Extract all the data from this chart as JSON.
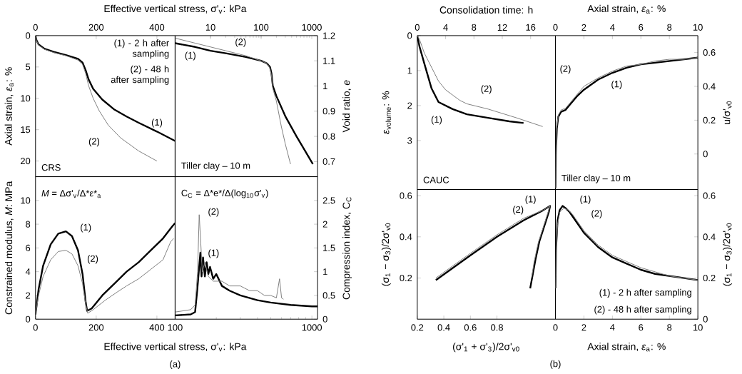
{
  "chart_data": [
    {
      "type": "line",
      "xlabel": "Effective vertical stress, σ'$_{v}$: kPa",
      "ylabel": "Axial strain, *ε*$_{a}$: %",
      "xlim": [
        0,
        460
      ],
      "ylim": [
        22.5,
        0
      ],
      "xticks": [
        0,
        200,
        400
      ],
      "yticks": [
        0,
        5,
        10,
        15,
        20
      ],
      "series": [
        {
          "color": "#000000",
          "x": [
            0,
            3,
            10,
            30,
            60,
            100,
            140,
            155,
            165,
            175,
            190,
            220,
            260,
            300,
            340,
            400,
            460
          ],
          "values": [
            0,
            0.7,
            1.4,
            2.1,
            2.6,
            3.1,
            3.7,
            4.3,
            5.5,
            7.0,
            8.5,
            10.2,
            11.8,
            12.9,
            13.9,
            15.3,
            16.8
          ]
        },
        {
          "color": "#808080",
          "x": [
            0,
            3,
            10,
            30,
            60,
            100,
            140,
            155,
            165,
            175,
            190,
            210,
            240,
            280,
            340,
            400
          ],
          "values": [
            0,
            0.8,
            1.5,
            2.2,
            2.7,
            3.2,
            3.9,
            4.6,
            6.0,
            8.0,
            10.0,
            12.0,
            14.3,
            16.3,
            18.4,
            20.0
          ]
        }
      ],
      "annotations": [
        "(1) - 2 h after sampling",
        "(2) - 48 h after sampling",
        "CRS",
        "(1)",
        "(2)"
      ]
    },
    {
      "type": "line",
      "log": "x",
      "ylabel": "Void ratio, *e*",
      "xlim": [
        2,
        1300
      ],
      "ylim": [
        0.64,
        1.2
      ],
      "xticks": [
        10,
        100,
        1000
      ],
      "yticks": [
        0.7,
        0.8,
        0.9,
        1,
        1.1,
        1.2
      ],
      "series": [
        {
          "color": "#000000",
          "x": [
            2,
            5,
            10,
            20,
            50,
            100,
            130,
            150,
            160,
            170,
            200,
            300,
            500,
            700,
            1050
          ],
          "values": [
            1.17,
            1.155,
            1.14,
            1.13,
            1.115,
            1.1,
            1.09,
            1.075,
            1.05,
            1.0,
            0.96,
            0.88,
            0.8,
            0.75,
            0.69
          ]
        },
        {
          "color": "#808080",
          "x": [
            2,
            5,
            10,
            20,
            50,
            100,
            130,
            150,
            160,
            170,
            200,
            250,
            300,
            380
          ],
          "values": [
            1.19,
            1.17,
            1.155,
            1.14,
            1.12,
            1.1,
            1.09,
            1.07,
            1.04,
            0.99,
            0.94,
            0.84,
            0.77,
            0.69
          ]
        }
      ],
      "annotations": [
        "Tiller clay – 10 m",
        "(1)",
        "(2)"
      ]
    },
    {
      "type": "line",
      "xlabel": "Consolidation time: h",
      "ylabel": "*ε*$_{volume}$: %",
      "xlim": [
        0,
        19.5
      ],
      "ylim": [
        4.4,
        0
      ],
      "xticks": [
        0,
        4,
        8,
        12,
        16
      ],
      "yticks": [
        0,
        1,
        2,
        3
      ],
      "series": [
        {
          "color": "#000000",
          "x": [
            0,
            0.3,
            1,
            2,
            3,
            5,
            7,
            10,
            13,
            15
          ],
          "values": [
            0,
            0.3,
            0.8,
            1.5,
            1.9,
            2.1,
            2.25,
            2.35,
            2.45,
            2.5
          ]
        },
        {
          "color": "#808080",
          "x": [
            0,
            0.3,
            1,
            2,
            3,
            4,
            5,
            6,
            7,
            10,
            14,
            17.7
          ],
          "values": [
            0,
            0.1,
            0.5,
            0.9,
            1.3,
            1.55,
            1.7,
            1.85,
            1.95,
            2.1,
            2.35,
            2.6
          ]
        }
      ],
      "annotations": [
        "CAUC",
        "(1)",
        "(2)"
      ]
    },
    {
      "type": "line",
      "xlabel": "Axial strain, *ε*$_{a}$: %",
      "ylabel": "u/σ'$_{v0}$",
      "xlim": [
        0,
        10
      ],
      "ylim": [
        -0.21,
        0.7
      ],
      "xticks": [
        0,
        2,
        4,
        6,
        8,
        10
      ],
      "yticks": [
        0,
        0.2,
        0.4,
        0.6
      ],
      "series": [
        {
          "color": "#000000",
          "x": [
            0,
            0.03,
            0.1,
            0.2,
            0.4,
            0.7,
            1.0,
            1.5,
            2,
            3,
            4,
            5,
            6,
            7,
            8,
            9,
            10
          ],
          "values": [
            -0.2,
            0.0,
            0.15,
            0.22,
            0.25,
            0.26,
            0.29,
            0.34,
            0.38,
            0.44,
            0.48,
            0.51,
            0.53,
            0.54,
            0.55,
            0.56,
            0.57
          ]
        },
        {
          "color": "#808080",
          "x": [
            0,
            0.03,
            0.1,
            0.2,
            0.4,
            0.7,
            1.0,
            1.5,
            2,
            3,
            4,
            5,
            6,
            7,
            8,
            9,
            10
          ],
          "values": [
            -0.2,
            0.0,
            0.16,
            0.23,
            0.26,
            0.27,
            0.3,
            0.35,
            0.4,
            0.45,
            0.49,
            0.52,
            0.53,
            0.55,
            0.56,
            0.56,
            0.57
          ]
        }
      ],
      "annotations": [
        "Tiller clay – 10 m",
        "(1)",
        "(2)"
      ]
    },
    {
      "type": "line",
      "xlabel": "Effective vertical stress, σ'$_{v}$: kPa",
      "ylabel": "Constrained modulus, *M*: MPa",
      "xlim": [
        0,
        460
      ],
      "ylim": [
        0,
        12
      ],
      "xticks": [
        0,
        200,
        400
      ],
      "yticks": [
        0,
        2,
        4,
        6,
        8,
        10
      ],
      "series": [
        {
          "color": "#000000",
          "x": [
            0,
            10,
            25,
            50,
            75,
            100,
            120,
            140,
            155,
            165,
            170,
            185,
            220,
            260,
            300,
            340,
            380,
            420,
            450,
            460
          ],
          "values": [
            0.4,
            2.5,
            4.5,
            6.3,
            7.2,
            7.4,
            7.0,
            5.8,
            3.8,
            1.5,
            0.7,
            0.9,
            2.0,
            3.0,
            4.0,
            4.8,
            5.8,
            6.8,
            7.8,
            8.1
          ]
        },
        {
          "color": "#808080",
          "x": [
            0,
            10,
            25,
            50,
            75,
            100,
            120,
            140,
            155,
            165,
            172,
            190,
            230,
            270,
            300,
            340,
            380,
            420,
            445,
            455
          ],
          "values": [
            0.4,
            2.0,
            3.6,
            5.0,
            5.7,
            5.8,
            5.5,
            4.5,
            3.0,
            1.3,
            0.5,
            0.8,
            1.6,
            2.3,
            2.8,
            3.4,
            4.2,
            5.0,
            6.5,
            6.8
          ]
        }
      ],
      "annotations": [
        "*M* = Δσ'$_{v}$/Δ*ε*$_{a}$",
        "(a)",
        "(1)",
        "(2)"
      ]
    },
    {
      "type": "line",
      "log": "x",
      "ylabel": "Compression index, C$_{C}$",
      "xlim": [
        100,
        1100
      ],
      "ylim": [
        0,
        3.0
      ],
      "xticks": [
        100,
        1000
      ],
      "yticks": [
        0,
        0.5,
        1,
        1.5,
        2,
        2.5
      ],
      "series": [
        {
          "color": "#000000",
          "x": [
            100,
            130,
            140,
            145,
            150,
            153,
            156,
            160,
            165,
            170,
            175,
            180,
            190,
            200,
            220,
            250,
            300,
            400,
            500,
            700,
            1000,
            1100
          ],
          "values": [
            0.08,
            0.1,
            0.15,
            0.6,
            1.1,
            1.4,
            0.9,
            1.3,
            0.9,
            1.2,
            0.95,
            1.1,
            0.85,
            0.95,
            0.7,
            0.6,
            0.5,
            0.4,
            0.35,
            0.3,
            0.27,
            0.27
          ]
        },
        {
          "color": "#808080",
          "x": [
            100,
            130,
            140,
            146,
            150,
            154,
            158,
            165,
            175,
            190,
            220,
            250,
            300,
            350,
            400,
            450,
            500,
            550,
            580,
            600,
            620
          ],
          "values": [
            0.15,
            0.2,
            0.3,
            1.0,
            2.2,
            1.6,
            1.0,
            1.2,
            0.9,
            0.8,
            0.8,
            0.7,
            0.7,
            0.6,
            0.6,
            0.5,
            0.5,
            0.45,
            0.85,
            0.45,
            0.42
          ]
        }
      ],
      "annotations": [
        "C$_{C}$ = Δ*e*/Δ(log$_{10}$σ'$_{v}$)",
        "(1)",
        "(2)"
      ]
    },
    {
      "type": "line",
      "xlabel": "(σ'$_{1}$ + σ'$_{3}$)/2σ'$_{v0}$",
      "ylabel": "(σ$_{1}$ − σ$_{3}$)/2σ'$_{v0}$",
      "xlim": [
        0.2,
        1.24
      ],
      "ylim": [
        0,
        0.63
      ],
      "xticks": [
        0.2,
        0.4,
        0.6,
        0.8
      ],
      "yticks": [
        0.2,
        0.4,
        0.6
      ],
      "series": [
        {
          "color": "#000000",
          "x": [
            0.34,
            0.6,
            0.8,
            1.0,
            1.15,
            1.2,
            1.19,
            1.16,
            1.12,
            1.09,
            1.07,
            1.05
          ],
          "values": [
            0.19,
            0.31,
            0.4,
            0.48,
            0.53,
            0.55,
            0.52,
            0.46,
            0.38,
            0.29,
            0.22,
            0.15
          ]
        },
        {
          "color": "#808080",
          "x": [
            0.34,
            0.6,
            0.8,
            1.0,
            1.15,
            1.2,
            1.18,
            1.15,
            1.11,
            1.08,
            1.06
          ],
          "values": [
            0.2,
            0.32,
            0.41,
            0.49,
            0.53,
            0.55,
            0.51,
            0.45,
            0.37,
            0.28,
            0.2
          ]
        }
      ],
      "annotations": [
        "(b)",
        "(1)",
        "(2)"
      ]
    },
    {
      "type": "line",
      "xlabel": "Axial strain, *ε*$_{a}$: %",
      "ylabel": "(σ$_{1}$ − σ$_{3}$)/2σ'$_{v0}$",
      "xlim": [
        0,
        10
      ],
      "ylim": [
        0,
        0.63
      ],
      "xticks": [
        0,
        2,
        4,
        6,
        8,
        10
      ],
      "yticks": [
        0,
        0.2,
        0.4,
        0.6
      ],
      "series": [
        {
          "color": "#000000",
          "x": [
            0,
            0.05,
            0.15,
            0.3,
            0.5,
            0.7,
            1,
            1.5,
            2,
            3,
            4,
            5,
            6,
            7,
            8,
            9,
            10
          ],
          "values": [
            0.15,
            0.35,
            0.48,
            0.53,
            0.55,
            0.54,
            0.52,
            0.47,
            0.42,
            0.35,
            0.3,
            0.27,
            0.24,
            0.22,
            0.21,
            0.2,
            0.19
          ]
        },
        {
          "color": "#808080",
          "x": [
            0,
            0.05,
            0.15,
            0.3,
            0.6,
            0.9,
            1.2,
            1.5,
            2,
            3,
            4,
            5,
            6,
            7,
            8,
            9,
            10
          ],
          "values": [
            0.15,
            0.33,
            0.46,
            0.52,
            0.54,
            0.53,
            0.51,
            0.48,
            0.43,
            0.36,
            0.31,
            0.28,
            0.25,
            0.23,
            0.21,
            0.2,
            0.19
          ]
        }
      ],
      "annotations": [
        "(1) - 2 h after sampling",
        "(2) - 48 h after sampling",
        "(1)",
        "(2)"
      ]
    }
  ]
}
